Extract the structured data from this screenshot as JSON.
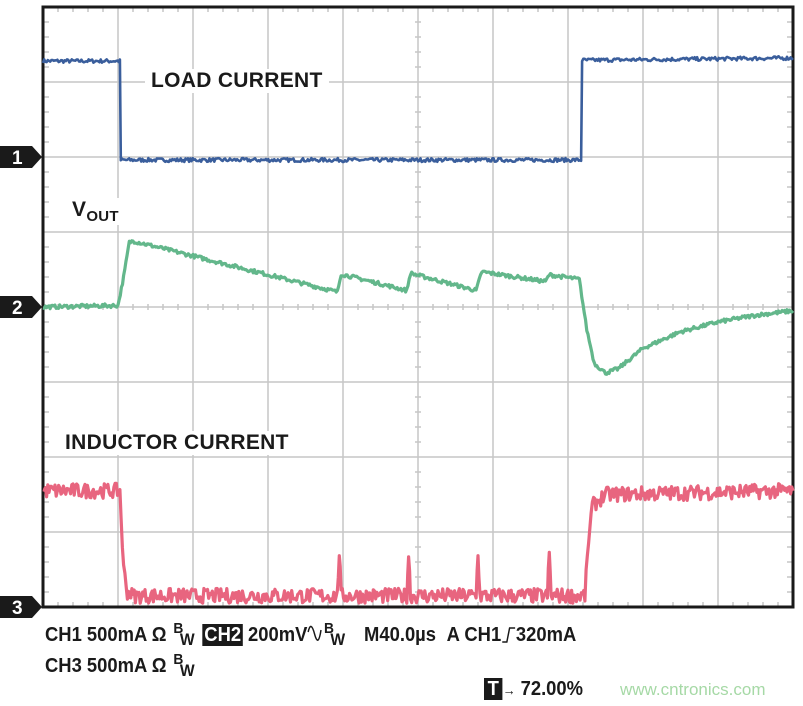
{
  "chart_data": {
    "type": "line",
    "title": "",
    "grid": true,
    "divisions": {
      "horizontal": 10,
      "vertical": 8
    },
    "time_per_div_us": 40,
    "x_unit": "µs",
    "xlim": [
      0,
      400
    ],
    "y_unit": "divisions above channel reference marker",
    "colors": {
      "ch1": "#3a5e9c",
      "ch2": "#63b78b",
      "ch3": "#e8657f",
      "grid": "#c6c6c6"
    },
    "series": [
      {
        "name": "LOAD CURRENT",
        "channel": "1",
        "reference_div_from_top": 2,
        "scale": "500mA/div",
        "points": [
          [
            0,
            1.28
          ],
          [
            41,
            1.28
          ],
          [
            41.5,
            -0.04
          ],
          [
            287,
            -0.04
          ],
          [
            287.5,
            1.29
          ],
          [
            400,
            1.32
          ]
        ]
      },
      {
        "name": "VOUT",
        "channel": "2",
        "reference_div_from_top": 4,
        "scale": "200mV/div",
        "points": [
          [
            0,
            0
          ],
          [
            40,
            0.02
          ],
          [
            43,
            0.4
          ],
          [
            46,
            0.86
          ],
          [
            48,
            0.88
          ],
          [
            157,
            0.2
          ],
          [
            159,
            0.44
          ],
          [
            194,
            0.22
          ],
          [
            196,
            0.45
          ],
          [
            231,
            0.22
          ],
          [
            234,
            0.47
          ],
          [
            268,
            0.34
          ],
          [
            270,
            0.43
          ],
          [
            286,
            0.37
          ],
          [
            290,
            -0.3
          ],
          [
            294,
            -0.75
          ],
          [
            300,
            -0.88
          ],
          [
            307,
            -0.82
          ],
          [
            320,
            -0.55
          ],
          [
            340,
            -0.33
          ],
          [
            360,
            -0.2
          ],
          [
            380,
            -0.11
          ],
          [
            400,
            -0.05
          ]
        ]
      },
      {
        "name": "INDUCTOR CURRENT",
        "channel": "3",
        "reference_div_from_top": 8,
        "scale": "500mA/div",
        "points": [
          [
            0,
            1.55
          ],
          [
            41,
            1.55
          ],
          [
            43,
            0.5
          ],
          [
            45,
            0.2
          ],
          [
            48,
            0.15
          ],
          [
            157,
            0.15
          ],
          [
            158,
            0.75
          ],
          [
            159,
            0.15
          ],
          [
            194,
            0.15
          ],
          [
            195,
            0.72
          ],
          [
            196,
            0.15
          ],
          [
            231,
            0.15
          ],
          [
            232,
            0.75
          ],
          [
            233,
            0.15
          ],
          [
            269,
            0.15
          ],
          [
            270,
            0.72
          ],
          [
            271,
            0.15
          ],
          [
            289,
            0.15
          ],
          [
            291,
            0.9
          ],
          [
            293,
            1.35
          ],
          [
            300,
            1.5
          ],
          [
            400,
            1.55
          ]
        ]
      }
    ],
    "labels": {
      "load": "LOAD CURRENT",
      "vout_main": "V",
      "vout_sub": "OUT",
      "inductor": "INDUCTOR CURRENT"
    },
    "markers": [
      "1",
      "2",
      "3"
    ]
  },
  "status": {
    "ch1": "CH1 500mA Ω",
    "ch2_badge": "CH2",
    "ch2": "200mV",
    "ch2_coupling_icon": "ac-coupling-sine-icon",
    "ch3": "CH3 500mA Ω",
    "bw_b": "B",
    "bw_w": "W",
    "timebase": "M40.0µs",
    "trigger_source": "A CH1",
    "trigger_edge_icon": "rising-edge-icon",
    "trigger_level": "320mA",
    "trigger_pos_badge": "T",
    "trigger_pos": "72.00%"
  },
  "watermark": "www.cntronics.com"
}
